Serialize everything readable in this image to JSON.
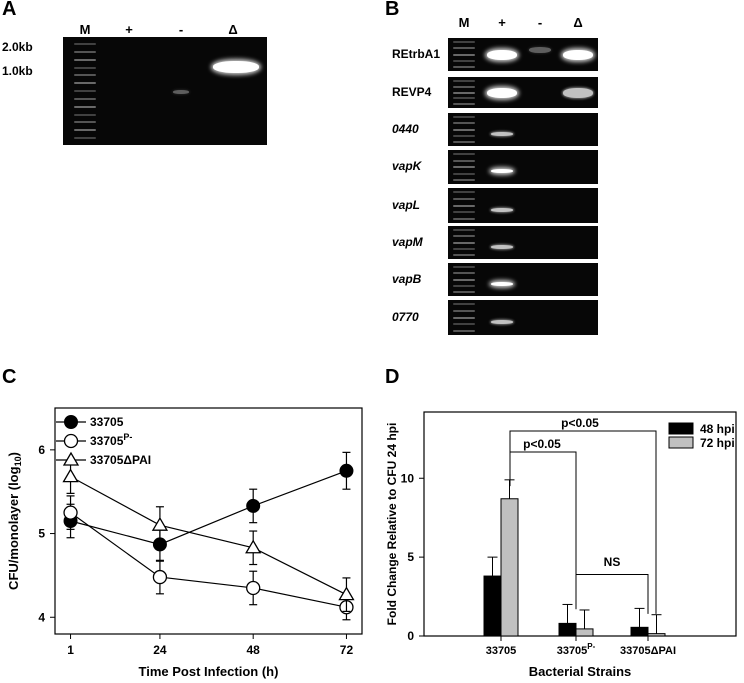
{
  "panel_a": {
    "letter": "A",
    "lanes": [
      "M",
      "+",
      "-",
      "Δ"
    ],
    "size_markers": [
      "2.0kb",
      "1.0kb"
    ]
  },
  "panel_b": {
    "letter": "B",
    "lanes": [
      "M",
      "+",
      "-",
      "Δ"
    ],
    "genes": [
      {
        "label": "REtrbA1",
        "italic": false,
        "band_plus": "strong",
        "band_minus": "faint",
        "band_delta": "strong"
      },
      {
        "label": "REVP4",
        "italic": false,
        "band_plus": "strong",
        "band_minus": "none",
        "band_delta": "medium"
      },
      {
        "label": "0440",
        "italic": true,
        "band_plus": "medium",
        "band_minus": "none",
        "band_delta": "none"
      },
      {
        "label": "vapK",
        "italic": true,
        "band_plus": "strong",
        "band_minus": "none",
        "band_delta": "none"
      },
      {
        "label": "vapL",
        "italic": true,
        "band_plus": "medium",
        "band_minus": "none",
        "band_delta": "none"
      },
      {
        "label": "vapM",
        "italic": true,
        "band_plus": "medium",
        "band_minus": "none",
        "band_delta": "none"
      },
      {
        "label": "vapB",
        "italic": true,
        "band_plus": "strong",
        "band_minus": "none",
        "band_delta": "none"
      },
      {
        "label": "0770",
        "italic": true,
        "band_plus": "medium",
        "band_minus": "none",
        "band_delta": "none"
      }
    ]
  },
  "panel_c": {
    "letter": "C",
    "xlabel": "Time Post Infection (h)",
    "ylabel_main": "CFU/monolayer (log",
    "ylabel_sub": "10",
    "ylabel_end": ")",
    "legend": [
      {
        "base": "33705",
        "sup": "",
        "tail": "",
        "marker": "filled-circle"
      },
      {
        "base": "33705",
        "sup": "P-",
        "tail": "",
        "marker": "open-circle"
      },
      {
        "base": "33705",
        "sup": "",
        "tail": "ΔPAI",
        "marker": "open-triangle"
      }
    ]
  },
  "panel_d": {
    "letter": "D",
    "xlabel": "Bacterial Strains",
    "ylabel": "Fold Change Relative to CFU 24 hpi",
    "legend": [
      {
        "label": "48 hpi",
        "color": "#000000"
      },
      {
        "label": "72  hpi",
        "color": "#c0c0c0"
      }
    ],
    "strain_labels": [
      {
        "base": "33705",
        "sup": "",
        "tail": ""
      },
      {
        "base": "33705",
        "sup": "P-",
        "tail": ""
      },
      {
        "base": "33705",
        "sup": "",
        "tail": "ΔPAI"
      }
    ],
    "annotations": {
      "p1": "p<0.05",
      "p2": "p<0.05",
      "ns": "NS"
    }
  },
  "chart_data": [
    {
      "type": "line",
      "x": [
        1,
        24,
        48,
        72
      ],
      "xticks": [
        "1",
        "24",
        "48",
        "72"
      ],
      "ylim": [
        3.8,
        6.5
      ],
      "yticks": [
        4,
        5,
        6
      ],
      "series": [
        {
          "name": "33705",
          "values": [
            5.15,
            4.87,
            5.33,
            5.75
          ],
          "err": [
            0.2,
            0.2,
            0.2,
            0.22
          ],
          "marker": "filled-circle"
        },
        {
          "name": "33705P-",
          "values": [
            5.25,
            4.48,
            4.35,
            4.12
          ],
          "err": [
            0.2,
            0.2,
            0.2,
            0.15
          ],
          "marker": "open-circle"
        },
        {
          "name": "33705ΔPAI",
          "values": [
            5.68,
            5.1,
            4.83,
            4.27
          ],
          "err": [
            0.2,
            0.22,
            0.2,
            0.2
          ],
          "marker": "open-triangle"
        }
      ]
    },
    {
      "type": "bar",
      "categories": [
        "33705",
        "33705P-",
        "33705ΔPAI"
      ],
      "ylim": [
        0,
        14.2
      ],
      "yticks": [
        0,
        5,
        10
      ],
      "series": [
        {
          "name": "48 hpi",
          "color": "#000000",
          "values": [
            3.8,
            0.8,
            0.55
          ],
          "err": [
            1.2,
            1.2,
            1.2
          ]
        },
        {
          "name": "72  hpi",
          "color": "#c0c0c0",
          "values": [
            8.7,
            0.45,
            0.15
          ],
          "err": [
            1.2,
            1.2,
            1.2
          ]
        }
      ]
    }
  ]
}
